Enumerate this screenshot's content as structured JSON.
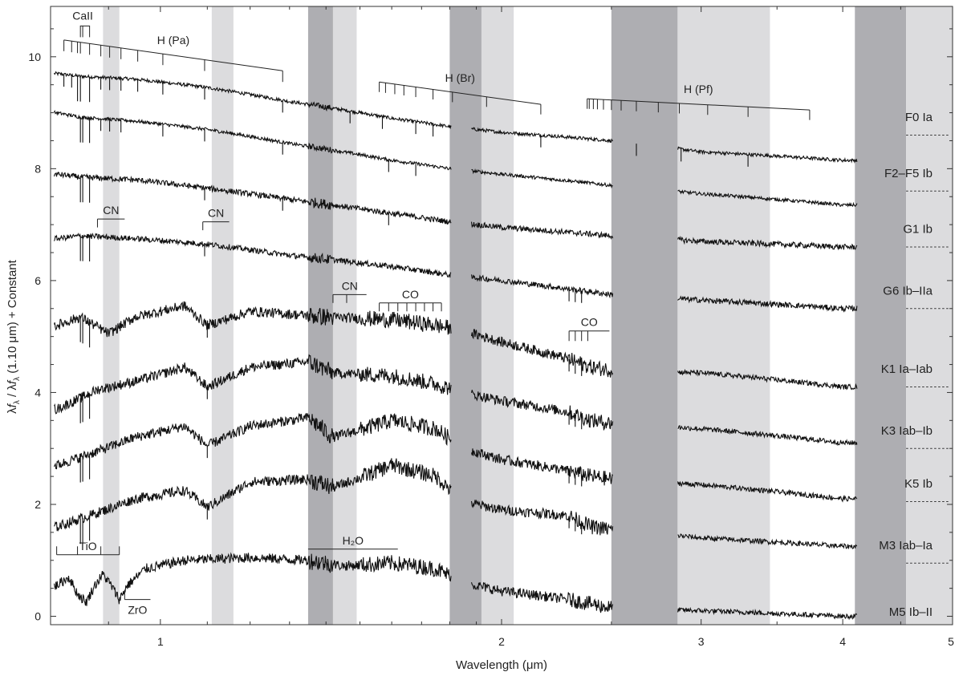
{
  "chart_data": {
    "type": "line",
    "title": "",
    "xlabel": "Wavelength (μm)",
    "ylabel_parts": [
      "λ",
      "f",
      "λ",
      " / λ",
      "f",
      "λ",
      " (1.10 μm) + Constant"
    ],
    "x_scale": "log",
    "xlim": [
      0.8,
      5.0
    ],
    "ylim": [
      -0.15,
      10.9
    ],
    "x_ticks": [
      1,
      2,
      3,
      4,
      5
    ],
    "y_ticks": [
      0,
      2,
      4,
      6,
      8,
      10
    ],
    "absorption_bands": [
      {
        "x0": 0.89,
        "x1": 0.92,
        "color": "#dcdcde"
      },
      {
        "x0": 1.11,
        "x1": 1.16,
        "color": "#dcdcde"
      },
      {
        "x0": 1.35,
        "x1": 1.42,
        "color": "#aeaeb2"
      },
      {
        "x0": 1.42,
        "x1": 1.49,
        "color": "#dcdcde"
      },
      {
        "x0": 1.8,
        "x1": 1.92,
        "color": "#aeaeb2"
      },
      {
        "x0": 1.92,
        "x1": 2.05,
        "color": "#dcdcde"
      },
      {
        "x0": 2.5,
        "x1": 2.86,
        "color": "#aeaeb2"
      },
      {
        "x0": 2.86,
        "x1": 3.45,
        "color": "#dcdcde"
      },
      {
        "x0": 4.1,
        "x1": 4.55,
        "color": "#aeaeb2"
      },
      {
        "x0": 4.55,
        "x1": 5.0,
        "color": "#dcdcde"
      }
    ],
    "series": [
      {
        "name": "F0 Ia",
        "offset": 8.6,
        "profile": "hot",
        "points": [
          [
            0.81,
            9.7
          ],
          [
            0.85,
            9.65
          ],
          [
            0.95,
            9.6
          ],
          [
            1.1,
            9.45
          ],
          [
            1.3,
            9.2
          ],
          [
            1.6,
            8.9
          ],
          [
            1.8,
            8.75
          ],
          [
            2.0,
            8.65
          ],
          [
            2.5,
            8.5
          ],
          [
            3.0,
            8.3
          ],
          [
            4.0,
            8.15
          ]
        ],
        "lines": [
          0.822,
          0.835,
          0.845,
          0.85,
          0.866,
          0.886,
          0.902,
          0.923,
          0.955,
          1.005,
          1.094,
          1.282,
          1.47,
          1.57,
          1.68,
          1.74,
          2.166,
          2.63,
          2.88,
          3.3
        ]
      },
      {
        "name": "F2–F5 Ib",
        "offset": 7.6,
        "profile": "hot",
        "points": [
          [
            0.81,
            9.0
          ],
          [
            0.85,
            8.92
          ],
          [
            0.95,
            8.85
          ],
          [
            1.1,
            8.7
          ],
          [
            1.3,
            8.45
          ],
          [
            1.6,
            8.15
          ],
          [
            1.8,
            8.0
          ],
          [
            2.0,
            7.9
          ],
          [
            2.5,
            7.7
          ],
          [
            3.0,
            7.55
          ],
          [
            4.0,
            7.35
          ]
        ],
        "lines": [
          0.85,
          0.854,
          0.866,
          0.886,
          0.902,
          0.923,
          1.005,
          1.094,
          1.282,
          1.59,
          1.68
        ]
      },
      {
        "name": "G1 Ib",
        "offset": 6.6,
        "profile": "warm",
        "points": [
          [
            0.81,
            7.9
          ],
          [
            0.85,
            7.85
          ],
          [
            0.95,
            7.8
          ],
          [
            1.1,
            7.65
          ],
          [
            1.3,
            7.45
          ],
          [
            1.6,
            7.2
          ],
          [
            1.8,
            7.05
          ],
          [
            2.0,
            6.95
          ],
          [
            2.5,
            6.8
          ],
          [
            3.0,
            6.7
          ],
          [
            4.0,
            6.6
          ]
        ],
        "lines": [
          0.85,
          0.854,
          0.866,
          1.094,
          1.282,
          1.59
        ]
      },
      {
        "name": "G6 Ib–IIa",
        "offset": 5.5,
        "profile": "warm",
        "points": [
          [
            0.81,
            6.75
          ],
          [
            0.85,
            6.8
          ],
          [
            0.95,
            6.75
          ],
          [
            1.1,
            6.65
          ],
          [
            1.3,
            6.45
          ],
          [
            1.6,
            6.25
          ],
          [
            1.8,
            6.1
          ],
          [
            2.0,
            6.0
          ],
          [
            2.29,
            5.85
          ],
          [
            2.5,
            5.75
          ],
          [
            3.0,
            5.65
          ],
          [
            4.0,
            5.5
          ]
        ],
        "lines": [
          0.85,
          0.854,
          0.866,
          1.094,
          2.294,
          2.323,
          2.353
        ]
      },
      {
        "name": "K1 Ia–Iab",
        "offset": 4.1,
        "profile": "cool",
        "points": [
          [
            0.81,
            5.2
          ],
          [
            0.85,
            5.35
          ],
          [
            0.9,
            5.05
          ],
          [
            0.95,
            5.35
          ],
          [
            1.05,
            5.55
          ],
          [
            1.1,
            5.2
          ],
          [
            1.2,
            5.45
          ],
          [
            1.4,
            5.35
          ],
          [
            1.6,
            5.3
          ],
          [
            1.75,
            5.2
          ],
          [
            1.85,
            5.1
          ],
          [
            2.0,
            4.9
          ],
          [
            2.29,
            4.6
          ],
          [
            2.4,
            4.45
          ],
          [
            2.5,
            4.4
          ],
          [
            3.0,
            4.35
          ],
          [
            4.0,
            4.1
          ]
        ],
        "lines": [
          0.85,
          0.854,
          0.866,
          1.1,
          2.294,
          2.323,
          2.353
        ]
      },
      {
        "name": "K3 Iab–Ib",
        "offset": 3.0,
        "profile": "cool",
        "points": [
          [
            0.81,
            3.7
          ],
          [
            0.88,
            4.05
          ],
          [
            0.95,
            4.2
          ],
          [
            1.05,
            4.45
          ],
          [
            1.1,
            4.1
          ],
          [
            1.2,
            4.45
          ],
          [
            1.35,
            4.55
          ],
          [
            1.42,
            4.35
          ],
          [
            1.6,
            4.3
          ],
          [
            1.75,
            4.15
          ],
          [
            1.85,
            4.0
          ],
          [
            2.0,
            3.85
          ],
          [
            2.29,
            3.65
          ],
          [
            2.4,
            3.5
          ],
          [
            2.5,
            3.45
          ],
          [
            3.0,
            3.35
          ],
          [
            4.0,
            3.1
          ]
        ],
        "lines": [
          0.85,
          0.854,
          0.866,
          1.1,
          2.294,
          2.323,
          2.353
        ]
      },
      {
        "name": "K5 Ib",
        "offset": 2.05,
        "profile": "cool",
        "points": [
          [
            0.81,
            2.7
          ],
          [
            0.88,
            2.95
          ],
          [
            0.95,
            3.2
          ],
          [
            1.05,
            3.4
          ],
          [
            1.1,
            3.05
          ],
          [
            1.2,
            3.4
          ],
          [
            1.35,
            3.55
          ],
          [
            1.42,
            3.2
          ],
          [
            1.6,
            3.5
          ],
          [
            1.75,
            3.35
          ],
          [
            1.85,
            3.0
          ],
          [
            2.0,
            2.8
          ],
          [
            2.29,
            2.6
          ],
          [
            2.4,
            2.5
          ],
          [
            2.5,
            2.45
          ],
          [
            3.0,
            2.35
          ],
          [
            4.0,
            2.1
          ]
        ],
        "lines": [
          0.85,
          0.854,
          0.866,
          1.1,
          2.294,
          2.323,
          2.353
        ]
      },
      {
        "name": "M3 Iab–Ia",
        "offset": 0.95,
        "profile": "m",
        "points": [
          [
            0.81,
            1.6
          ],
          [
            0.88,
            1.85
          ],
          [
            0.95,
            2.1
          ],
          [
            1.05,
            2.25
          ],
          [
            1.1,
            1.95
          ],
          [
            1.2,
            2.4
          ],
          [
            1.35,
            2.45
          ],
          [
            1.42,
            2.3
          ],
          [
            1.6,
            2.7
          ],
          [
            1.75,
            2.5
          ],
          [
            1.85,
            2.05
          ],
          [
            2.0,
            1.9
          ],
          [
            2.29,
            1.8
          ],
          [
            2.4,
            1.6
          ],
          [
            2.5,
            1.55
          ],
          [
            3.0,
            1.4
          ],
          [
            4.0,
            1.25
          ]
        ],
        "lines": [
          0.85,
          0.854,
          0.866,
          1.1,
          2.294,
          2.323,
          2.353
        ]
      },
      {
        "name": "M5 Ib–II",
        "offset": null,
        "profile": "m",
        "points": [
          [
            0.81,
            0.55
          ],
          [
            0.83,
            0.7
          ],
          [
            0.845,
            0.4
          ],
          [
            0.86,
            0.25
          ],
          [
            0.875,
            0.55
          ],
          [
            0.89,
            0.75
          ],
          [
            0.905,
            0.55
          ],
          [
            0.92,
            0.3
          ],
          [
            0.935,
            0.55
          ],
          [
            0.97,
            0.85
          ],
          [
            1.05,
            1.0
          ],
          [
            1.2,
            1.05
          ],
          [
            1.35,
            1.0
          ],
          [
            1.45,
            0.9
          ],
          [
            1.6,
            0.95
          ],
          [
            1.75,
            0.85
          ],
          [
            1.85,
            0.6
          ],
          [
            2.0,
            0.45
          ],
          [
            2.29,
            0.3
          ],
          [
            2.5,
            0.15
          ],
          [
            3.0,
            0.1
          ],
          [
            4.0,
            0.0
          ]
        ],
        "lines": []
      }
    ],
    "series_labels": [
      "F0 Ia",
      "F2–F5 Ib",
      "G1 Ib",
      "G6 Ib–IIa",
      "K1 Ia–Iab",
      "K3 Iab–Ib",
      "K5 Ib",
      "M3 Iab–Ia",
      "M5 Ib–II"
    ],
    "line_markers": [
      {
        "label": "CaII",
        "type": "caii",
        "x": [
          0.85,
          0.854,
          0.866
        ],
        "y_top": 10.55,
        "y_bottom": 10.35
      },
      {
        "label": "H (Pa)",
        "type": "series",
        "x": [
          0.822,
          0.835,
          0.845,
          0.85,
          0.866,
          0.886,
          0.902,
          0.923,
          0.955,
          1.005,
          1.094,
          1.282
        ],
        "y_start": 10.3,
        "y_end": 9.75,
        "tick_len": 0.2
      },
      {
        "label": "H (Br)",
        "type": "series",
        "x": [
          1.56,
          1.58,
          1.61,
          1.64,
          1.68,
          1.74,
          1.81,
          1.94,
          2.166
        ],
        "y_start": 9.55,
        "y_end": 9.15,
        "tick_len": 0.18
      },
      {
        "label": "H (Pf)",
        "type": "series",
        "x": [
          2.38,
          2.39,
          2.41,
          2.43,
          2.46,
          2.5,
          2.55,
          2.63,
          2.75,
          2.87,
          3.04,
          3.3,
          3.74
        ],
        "y_start": 9.25,
        "y_end": 9.05,
        "tick_len": 0.18
      },
      {
        "label": "CN",
        "type": "band",
        "x": [
          0.88,
          0.93
        ],
        "y": 7.1,
        "drop": 0.15,
        "label_pos": "above"
      },
      {
        "label": "CN",
        "type": "band",
        "x": [
          1.09,
          1.15
        ],
        "y": 7.05,
        "drop": 0.15,
        "label_pos": "above"
      },
      {
        "label": "CN",
        "type": "band",
        "x": [
          1.42,
          1.52
        ],
        "y": 5.75,
        "drop": 0.15,
        "label_pos": "above",
        "extra_ticks": [
          1.46
        ]
      },
      {
        "label": "CO",
        "type": "comb",
        "x": [
          1.56,
          1.59,
          1.62,
          1.65,
          1.68,
          1.71,
          1.74,
          1.77
        ],
        "y": 5.6,
        "tick_len": 0.15
      },
      {
        "label": "CO",
        "type": "comb",
        "x": [
          2.294,
          2.323,
          2.353,
          2.383
        ],
        "y": 5.1,
        "tick_len": 0.18,
        "bar_x1": 2.49
      },
      {
        "label": "TiO",
        "type": "comb",
        "x": [
          0.81,
          0.845,
          0.886,
          0.92
        ],
        "y": 1.1,
        "tick_len": -0.15
      },
      {
        "label": "ZrO",
        "type": "band",
        "x": [
          0.93,
          0.98
        ],
        "y": 0.3,
        "drop": -0.15,
        "label_pos": "below"
      },
      {
        "label": "H₂O",
        "type": "band",
        "x": [
          1.35,
          1.62
        ],
        "y": 1.2,
        "drop": 0,
        "label_pos": "above"
      }
    ]
  }
}
